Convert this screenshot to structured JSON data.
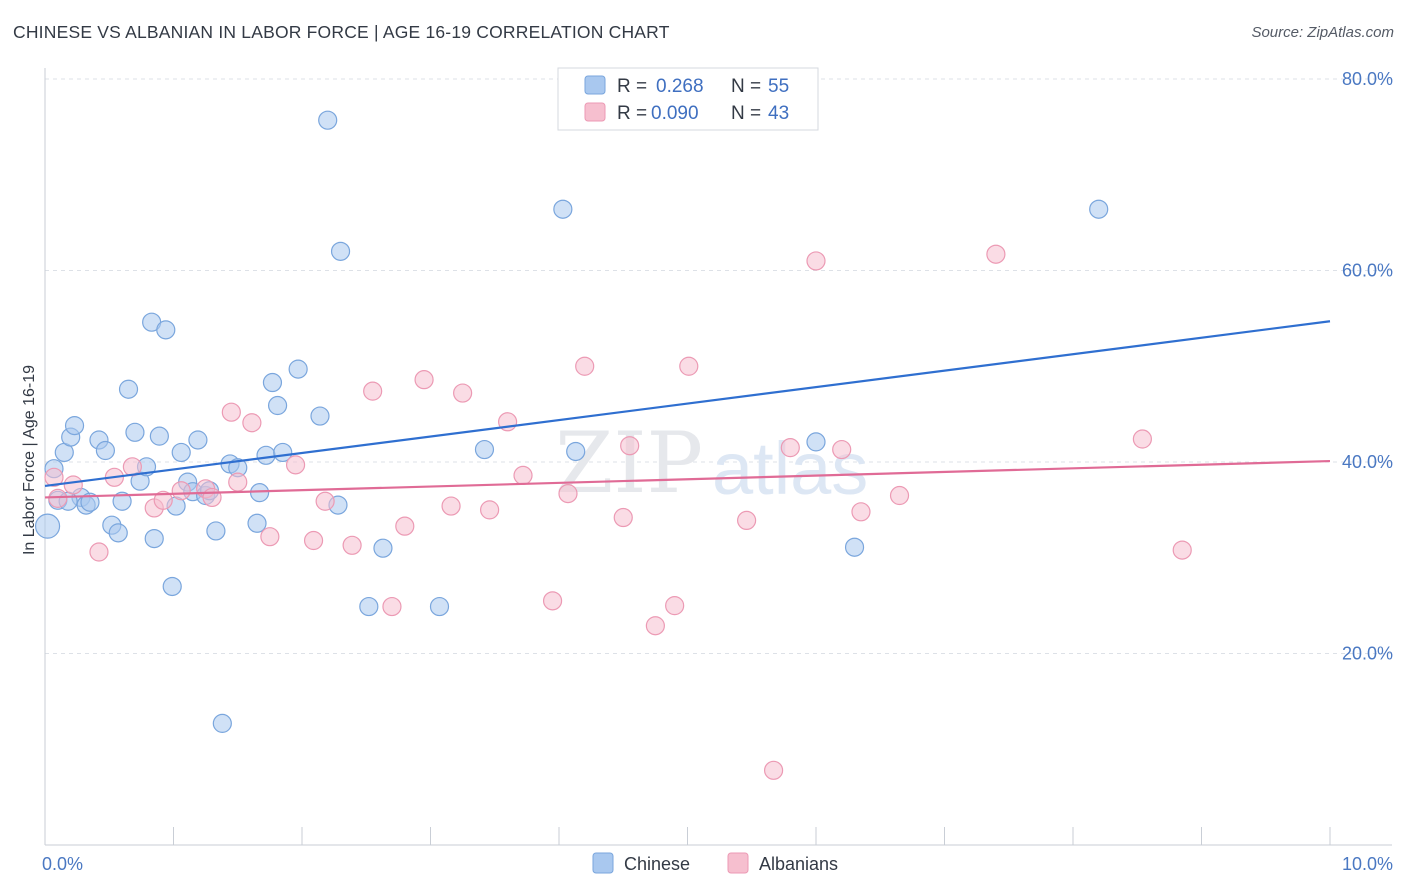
{
  "header": {
    "title": "CHINESE VS ALBANIAN IN LABOR FORCE | AGE 16-19 CORRELATION CHART",
    "source": "Source: ZipAtlas.com"
  },
  "watermark": {
    "part1": "ZIP",
    "part2": "atlas"
  },
  "legend_top": [
    {
      "r_label": "R = ",
      "r_value": "0.268",
      "n_label": "N = ",
      "n_value": "55"
    },
    {
      "r_label": "R = ",
      "r_value": "0.090",
      "n_label": "N = ",
      "n_value": "43"
    }
  ],
  "colors": {
    "chinese_fill": "#a9c8ef",
    "chinese_stroke": "#7aa6dd",
    "chinese_line": "#2f6fd0",
    "albanian_fill": "#f6bfcf",
    "albanian_stroke": "#ec9ab4",
    "albanian_line": "#e06b96",
    "grid": "#dde1e7",
    "axis": "#c9ced6"
  },
  "chart_data": {
    "type": "scatter",
    "title": "CHINESE VS ALBANIAN IN LABOR FORCE | AGE 16-19 CORRELATION CHART",
    "xlabel": "",
    "ylabel": "In Labor Force | Age 16-19",
    "xlim": [
      0,
      10
    ],
    "ylim": [
      0,
      80
    ],
    "x_tick_labels": [
      {
        "value": 0,
        "label": "0.0%"
      },
      {
        "value": 10,
        "label": "10.0%"
      }
    ],
    "y_tick_labels": [
      {
        "value": 20,
        "label": "20.0%"
      },
      {
        "value": 40,
        "label": "40.0%"
      },
      {
        "value": 60,
        "label": "60.0%"
      },
      {
        "value": 80,
        "label": "80.0%"
      }
    ],
    "grid": true,
    "legend_position": "bottom",
    "series": [
      {
        "name": "Chinese",
        "r": 0.268,
        "n": 55,
        "trend": {
          "x": [
            0,
            10
          ],
          "y": [
            37.5,
            54.7
          ]
        },
        "points": [
          [
            0.02,
            33.3
          ],
          [
            0.07,
            39.3
          ],
          [
            0.1,
            36.0
          ],
          [
            0.15,
            41.0
          ],
          [
            0.2,
            42.6
          ],
          [
            0.23,
            43.8
          ],
          [
            0.28,
            36.3
          ],
          [
            0.32,
            35.5
          ],
          [
            0.35,
            35.8
          ],
          [
            0.42,
            42.3
          ],
          [
            0.47,
            41.2
          ],
          [
            0.52,
            33.4
          ],
          [
            0.57,
            32.6
          ],
          [
            0.6,
            35.9
          ],
          [
            0.65,
            47.6
          ],
          [
            0.7,
            43.1
          ],
          [
            0.74,
            38.0
          ],
          [
            0.79,
            39.5
          ],
          [
            0.83,
            54.6
          ],
          [
            0.85,
            32.0
          ],
          [
            0.89,
            42.7
          ],
          [
            0.94,
            53.8
          ],
          [
            0.99,
            27.0
          ],
          [
            1.02,
            35.4
          ],
          [
            1.06,
            41.0
          ],
          [
            1.11,
            37.9
          ],
          [
            1.15,
            36.9
          ],
          [
            1.19,
            42.3
          ],
          [
            1.25,
            36.5
          ],
          [
            1.28,
            37.0
          ],
          [
            1.33,
            32.8
          ],
          [
            1.38,
            12.7
          ],
          [
            1.44,
            39.8
          ],
          [
            1.5,
            39.4
          ],
          [
            1.65,
            33.6
          ],
          [
            1.67,
            36.8
          ],
          [
            1.72,
            40.7
          ],
          [
            1.77,
            48.3
          ],
          [
            1.81,
            45.9
          ],
          [
            1.85,
            41.0
          ],
          [
            1.97,
            49.7
          ],
          [
            2.14,
            44.8
          ],
          [
            2.2,
            75.7
          ],
          [
            2.28,
            35.5
          ],
          [
            2.3,
            62.0
          ],
          [
            2.52,
            24.9
          ],
          [
            2.63,
            31.0
          ],
          [
            3.07,
            24.9
          ],
          [
            3.42,
            41.3
          ],
          [
            4.03,
            66.4
          ],
          [
            4.13,
            41.1
          ],
          [
            6.0,
            42.1
          ],
          [
            6.3,
            31.1
          ],
          [
            8.2,
            66.4
          ],
          [
            0.18,
            35.9
          ]
        ]
      },
      {
        "name": "Albanians",
        "r": 0.09,
        "n": 43,
        "trend": {
          "x": [
            0,
            10
          ],
          "y": [
            36.3,
            40.1
          ]
        },
        "points": [
          [
            0.07,
            38.4
          ],
          [
            0.1,
            36.2
          ],
          [
            0.22,
            37.6
          ],
          [
            0.42,
            30.6
          ],
          [
            0.54,
            38.4
          ],
          [
            0.68,
            39.5
          ],
          [
            0.85,
            35.2
          ],
          [
            0.92,
            36.0
          ],
          [
            1.06,
            37.0
          ],
          [
            1.25,
            37.2
          ],
          [
            1.3,
            36.3
          ],
          [
            1.45,
            45.2
          ],
          [
            1.5,
            37.9
          ],
          [
            1.61,
            44.1
          ],
          [
            1.75,
            32.2
          ],
          [
            1.95,
            39.7
          ],
          [
            2.09,
            31.8
          ],
          [
            2.18,
            35.9
          ],
          [
            2.39,
            31.3
          ],
          [
            2.55,
            47.4
          ],
          [
            2.7,
            24.9
          ],
          [
            2.8,
            33.3
          ],
          [
            2.95,
            48.6
          ],
          [
            3.16,
            35.4
          ],
          [
            3.25,
            47.2
          ],
          [
            3.46,
            35.0
          ],
          [
            3.6,
            44.2
          ],
          [
            3.72,
            38.6
          ],
          [
            3.95,
            25.5
          ],
          [
            4.07,
            36.7
          ],
          [
            4.2,
            50.0
          ],
          [
            4.5,
            34.2
          ],
          [
            4.55,
            41.7
          ],
          [
            4.75,
            22.9
          ],
          [
            4.9,
            25.0
          ],
          [
            5.01,
            50.0
          ],
          [
            5.46,
            33.9
          ],
          [
            5.67,
            7.8
          ],
          [
            5.8,
            41.5
          ],
          [
            6.0,
            61.0
          ],
          [
            6.2,
            41.3
          ],
          [
            6.35,
            34.8
          ],
          [
            6.65,
            36.5
          ]
        ]
      }
    ],
    "extra_albanian_points": [
      [
        7.4,
        61.7
      ],
      [
        8.54,
        42.4
      ],
      [
        8.85,
        30.8
      ]
    ]
  }
}
